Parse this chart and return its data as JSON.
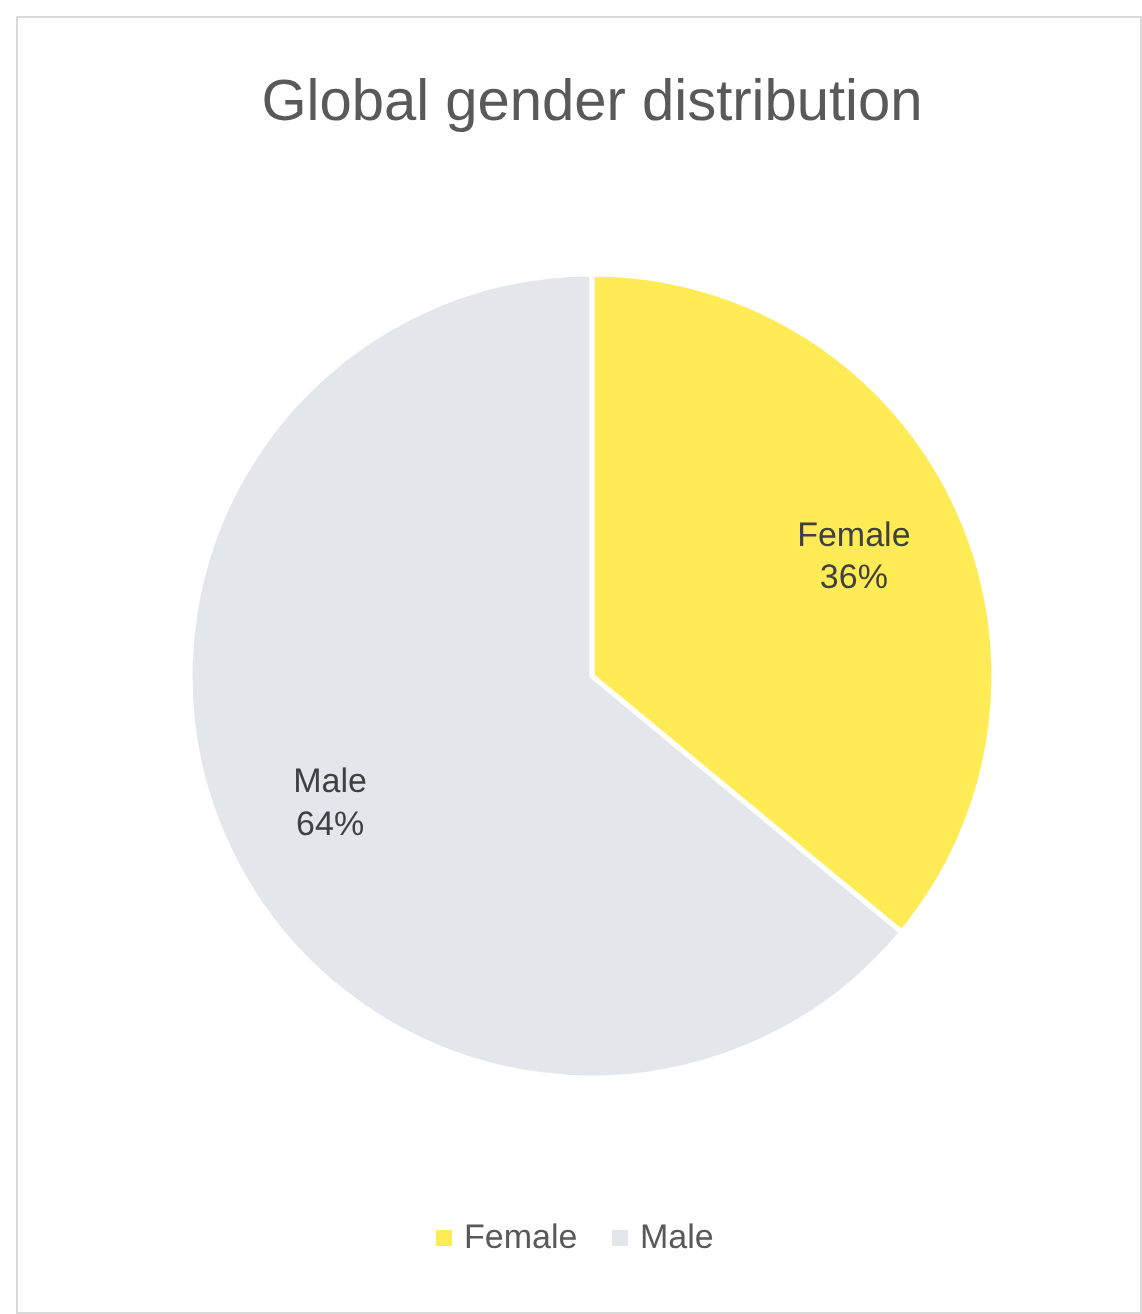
{
  "chart_data": {
    "type": "pie",
    "title": "Global gender distribution",
    "categories": [
      "Female",
      "Male"
    ],
    "values": [
      36,
      64
    ],
    "colors": [
      "#ffeb55",
      "#e3e6eb"
    ],
    "value_labels": [
      "36%",
      "64%"
    ],
    "legend": "bottom"
  }
}
